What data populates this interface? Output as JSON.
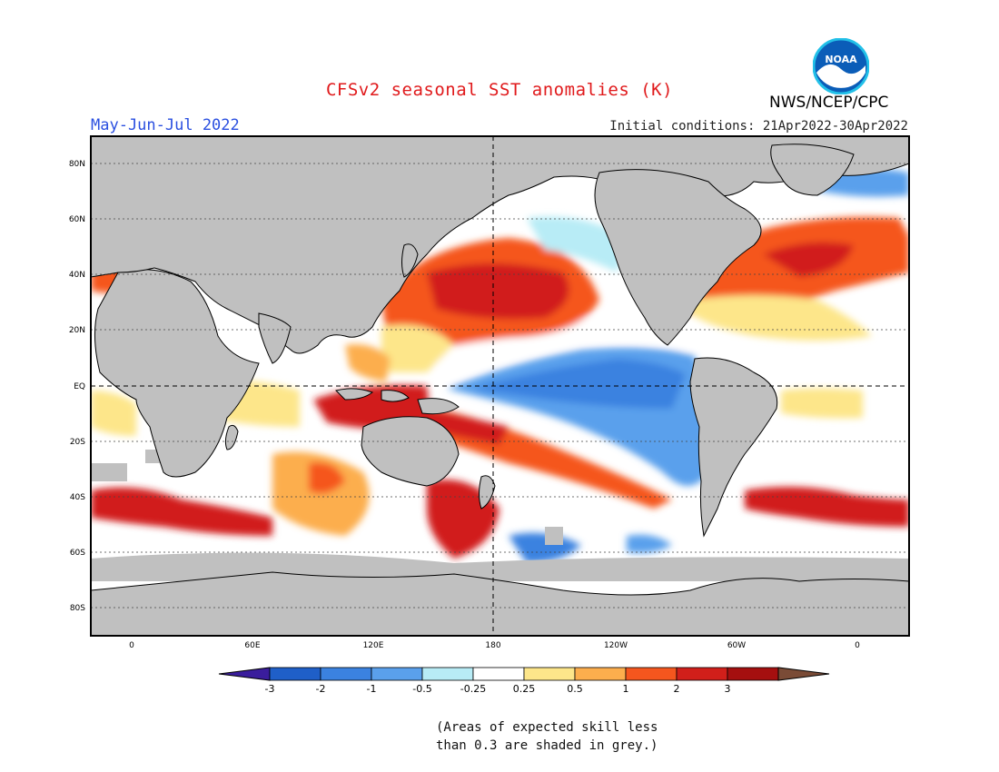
{
  "header": {
    "title": "CFSv2 seasonal SST anomalies (K)",
    "season": "May-Jun-Jul 2022",
    "initial_conditions": "Initial conditions: 21Apr2022-30Apr2022",
    "agency": "NWS/NCEP/CPC",
    "logo_text": "NOAA"
  },
  "map": {
    "lat_labels": [
      "80N",
      "60N",
      "40N",
      "20N",
      "EQ",
      "20S",
      "40S",
      "60S",
      "80S"
    ],
    "lon_labels": [
      "0",
      "60E",
      "120E",
      "180",
      "120W",
      "60W",
      "0"
    ]
  },
  "colorbar": {
    "tick_labels": [
      "-3",
      "-2",
      "-1",
      "-0.5",
      "-0.25",
      "0.25",
      "0.5",
      "1",
      "2",
      "3"
    ],
    "colors": [
      "#3a1d9c",
      "#1f5fc8",
      "#3b82e0",
      "#5aa0ec",
      "#b8ecf6",
      "#ffffff",
      "#fde68a",
      "#fcae4d",
      "#f5561e",
      "#d11f1a",
      "#a50f0f",
      "#7a4b36"
    ]
  },
  "note": {
    "line1": "(Areas of expected skill less",
    "line2": "than 0.3 are shaded in grey.)"
  }
}
